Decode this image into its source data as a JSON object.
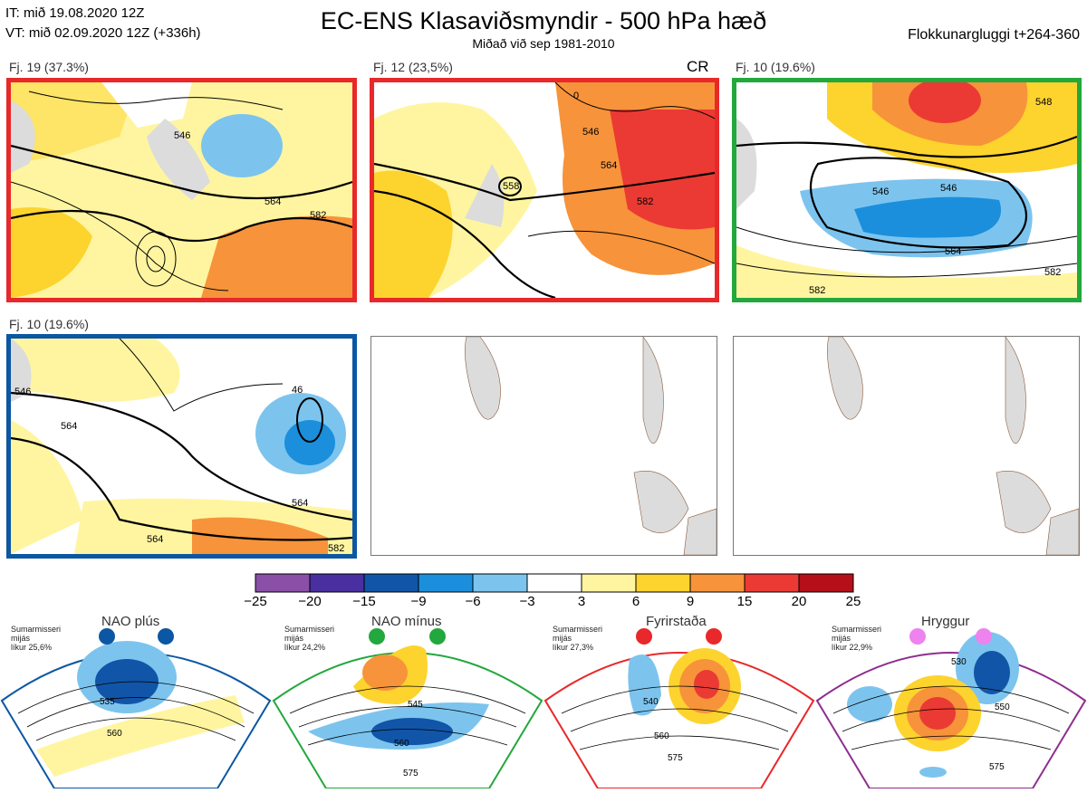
{
  "header": {
    "line_it": "IT: mið 19.08.2020 12Z",
    "line_vt": "VT: mið 02.09.2020 12Z  (+336h)",
    "title": "EC-ENS Klasaviðsmyndir - 500 hPa hæð",
    "subtitle": "Miðað við sep 1981-2010",
    "window": "Flokkunargluggi t+264-360"
  },
  "panels": [
    {
      "label": "Fj. 19 (37.3%)",
      "border_color": "#e8282a",
      "contours": [
        "546",
        "564",
        "582"
      ]
    },
    {
      "label": "Fj. 12 (23,5%)",
      "border_color": "#e8282a",
      "tag": "CR",
      "contours": [
        "546",
        "564",
        "582",
        "0",
        "558"
      ]
    },
    {
      "label": "Fj. 10 (19.6%)",
      "border_color": "#22a83c",
      "contours": [
        "546",
        "546",
        "564",
        "582",
        "582",
        "548"
      ]
    },
    {
      "label": "Fj. 10 (19.6%)",
      "border_color": "#0b57a3",
      "contours": [
        "546",
        "564",
        "564",
        "564",
        "582",
        "46"
      ]
    }
  ],
  "colorbar": {
    "ticks": [
      "−25",
      "−20",
      "−15",
      "−9",
      "−6",
      "−3",
      "3",
      "6",
      "9",
      "15",
      "20",
      "25"
    ],
    "colors": [
      "#8a4fa6",
      "#4a2fa0",
      "#1155a8",
      "#1b8fdc",
      "#7cc4ee",
      "#ffffff",
      "#fff5a0",
      "#fdd32e",
      "#f7933a",
      "#eb3a33",
      "#b5101a"
    ]
  },
  "regimes": [
    {
      "name": "NAO plús",
      "season": "Sumarmisseri",
      "period": "mijás",
      "likur": "líkur 25,6%",
      "frame_color": "#0b57a3",
      "dot_color": "#0b57a3",
      "contours": [
        "535",
        "560"
      ]
    },
    {
      "name": "NAO mínus",
      "season": "Sumarmisseri",
      "period": "mijás",
      "likur": "líkur 24,2%",
      "frame_color": "#22a83c",
      "dot_color": "#22a83c",
      "contours": [
        "545",
        "560",
        "575"
      ]
    },
    {
      "name": "Fyrirstaða",
      "season": "Sumarmisseri",
      "period": "mijás",
      "likur": "líkur 27,3%",
      "frame_color": "#e8282a",
      "dot_color": "#e8282a",
      "contours": [
        "540",
        "560",
        "575"
      ]
    },
    {
      "name": "Hryggur",
      "season": "Sumarmisseri",
      "period": "mijás",
      "likur": "líkur 22,9%",
      "frame_color": "#8e2e8f",
      "dot_color": "#ee82ee",
      "contours": [
        "530",
        "550",
        "575"
      ]
    }
  ]
}
